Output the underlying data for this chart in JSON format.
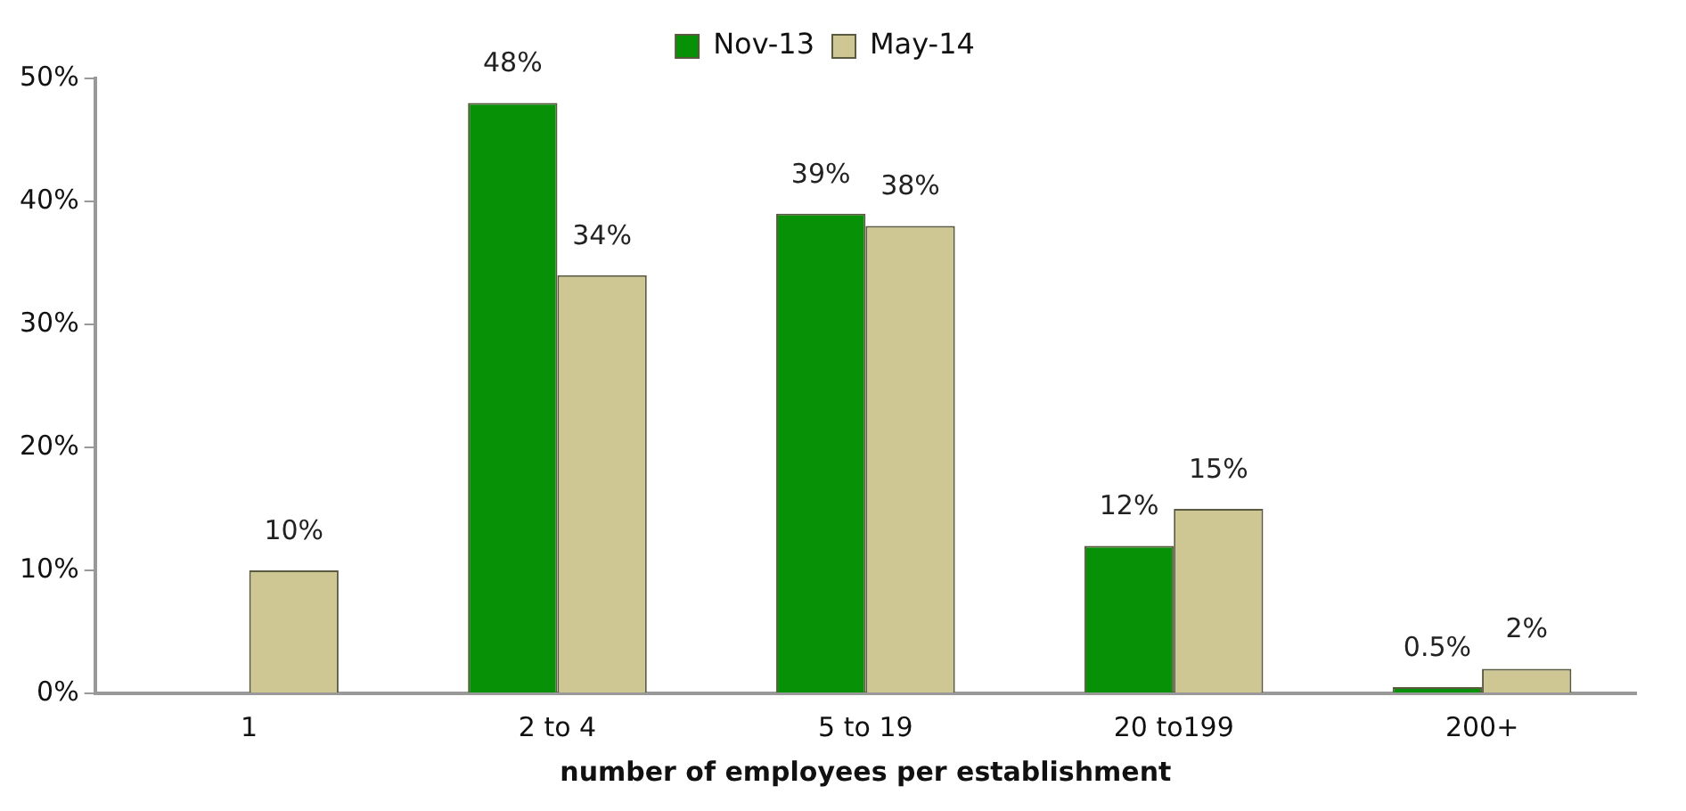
{
  "chart_data": {
    "type": "bar",
    "xlabel": "number of employees per establishment",
    "categories": [
      "1",
      "2 to 4",
      "5 to 19",
      "20 to199",
      "200+"
    ],
    "series": [
      {
        "name": "Nov-13",
        "color": "#079107",
        "values": [
          null,
          48,
          39,
          12,
          0.5
        ],
        "value_labels": [
          null,
          "48%",
          "39%",
          "12%",
          "0.5%"
        ]
      },
      {
        "name": "May-14",
        "color": "#cfc793",
        "values": [
          10,
          34,
          38,
          15,
          2
        ],
        "value_labels": [
          "10%",
          "34%",
          "38%",
          "15%",
          "2%"
        ]
      }
    ],
    "ylim": [
      0,
      50
    ],
    "yticks": [
      {
        "value": 0,
        "label": "0%"
      },
      {
        "value": 10,
        "label": "10%"
      },
      {
        "value": 20,
        "label": "20%"
      },
      {
        "value": 30,
        "label": "30%"
      },
      {
        "value": 40,
        "label": "40%"
      },
      {
        "value": 50,
        "label": "50%"
      }
    ],
    "grid": false,
    "legend": "top"
  }
}
